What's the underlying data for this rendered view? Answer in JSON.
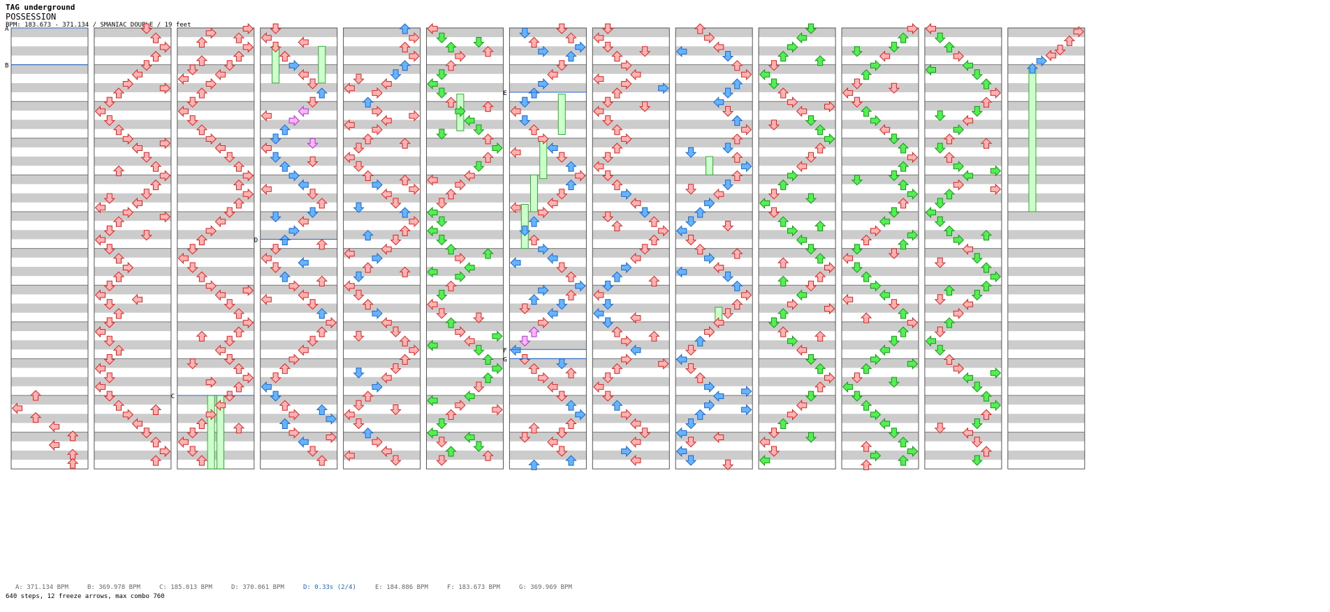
{
  "header": {
    "artist": "TAG underground",
    "title": "POSSESSION",
    "info": "BPM: 183.673 - 371.134 / SMANIAC DOUBLE / 19 feet"
  },
  "colors": {
    "red_fill": "#ffb3b3",
    "red_stroke": "#dd2222",
    "blue_fill": "#66b3ff",
    "blue_stroke": "#1a66cc",
    "green_fill": "#55ee55",
    "green_stroke": "#119911",
    "pink_fill": "#ffb3ff",
    "pink_stroke": "#aa33cc",
    "freeze_fill": "#ccffcc",
    "freeze_stroke": "#33aa33",
    "stripe": "#cccccc",
    "marker_line": "#2266cc"
  },
  "icons": {
    "red": "quarter-note-arrow-icon",
    "blue": "eighth-note-arrow-icon",
    "green": "sixteenth-note-arrow-icon",
    "pink": "other-note-arrow-icon"
  },
  "markers": [
    {
      "label": "A",
      "column": 0,
      "measure": 0
    },
    {
      "label": "B",
      "column": 0,
      "measure": 1
    },
    {
      "label": "C",
      "column": 2,
      "measure": 10
    },
    {
      "label": "D",
      "column": 3,
      "measure": 5.75
    },
    {
      "label": "E",
      "column": 6,
      "measure": 1.75
    },
    {
      "label": "F",
      "column": 6,
      "measure": 8.75
    },
    {
      "label": "G",
      "column": 6,
      "measure": 9
    }
  ],
  "legend": [
    {
      "text": "A: 371.134 BPM",
      "color": "#666666"
    },
    {
      "text": "B: 369.978 BPM",
      "color": "#666666"
    },
    {
      "text": "C: 185.013 BPM",
      "color": "#666666"
    },
    {
      "text": "D: 370.061 BPM",
      "color": "#666666"
    },
    {
      "text": "D: 0.33s (2/4)",
      "color": "#2266cc"
    },
    {
      "text": "E: 184.886 BPM",
      "color": "#666666"
    },
    {
      "text": "F: 183.673 BPM",
      "color": "#666666"
    },
    {
      "text": "G: 369.969 BPM",
      "color": "#666666"
    }
  ],
  "stats": "640 steps, 12 freeze arrows, max combo 760"
}
